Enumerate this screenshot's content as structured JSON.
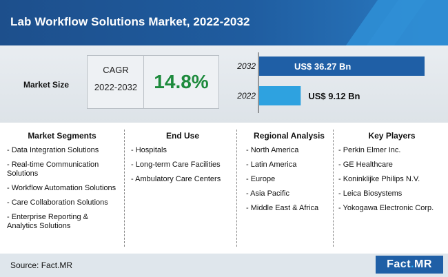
{
  "header": {
    "title": "Lab Workflow Solutions Market, 2022-2032"
  },
  "market_size": {
    "label": "Market Size",
    "cagr_label": "CAGR",
    "cagr_period": "2022-2032",
    "cagr_value": "14.8%"
  },
  "chart_data": {
    "type": "bar",
    "orientation": "horizontal",
    "categories": [
      "2032",
      "2022"
    ],
    "values": [
      36.27,
      9.12
    ],
    "value_labels": [
      "US$ 36.27 Bn",
      "US$ 9.12 Bn"
    ],
    "unit": "US$ Bn",
    "colors": [
      "#1f5fa6",
      "#2ea2e0"
    ]
  },
  "columns": [
    {
      "title": "Market Segments",
      "items": [
        "- Data Integration Solutions",
        "- Real-time Communication Solutions",
        "- Workflow Automation Solutions",
        "- Care Collaboration Solutions",
        "- Enterprise Reporting & Analytics Solutions"
      ]
    },
    {
      "title": "End Use",
      "items": [
        "- Hospitals",
        "- Long-term Care Facilities",
        "- Ambulatory Care Centers"
      ]
    },
    {
      "title": "Regional Analysis",
      "items": [
        "- North America",
        "- Latin America",
        "- Europe",
        "- Asia Pacific",
        "- Middle East & Africa"
      ]
    },
    {
      "title": "Key Players",
      "items": [
        "- Perkin Elmer Inc.",
        "- GE Healthcare",
        "- Koninklijke Philips N.V.",
        "- Leica Biosystems",
        "- Yokogawa Electronic Corp."
      ]
    }
  ],
  "footer": {
    "source": "Source: Fact.MR",
    "logo_main": "Fact",
    "logo_dot": ".",
    "logo_end": "MR"
  }
}
